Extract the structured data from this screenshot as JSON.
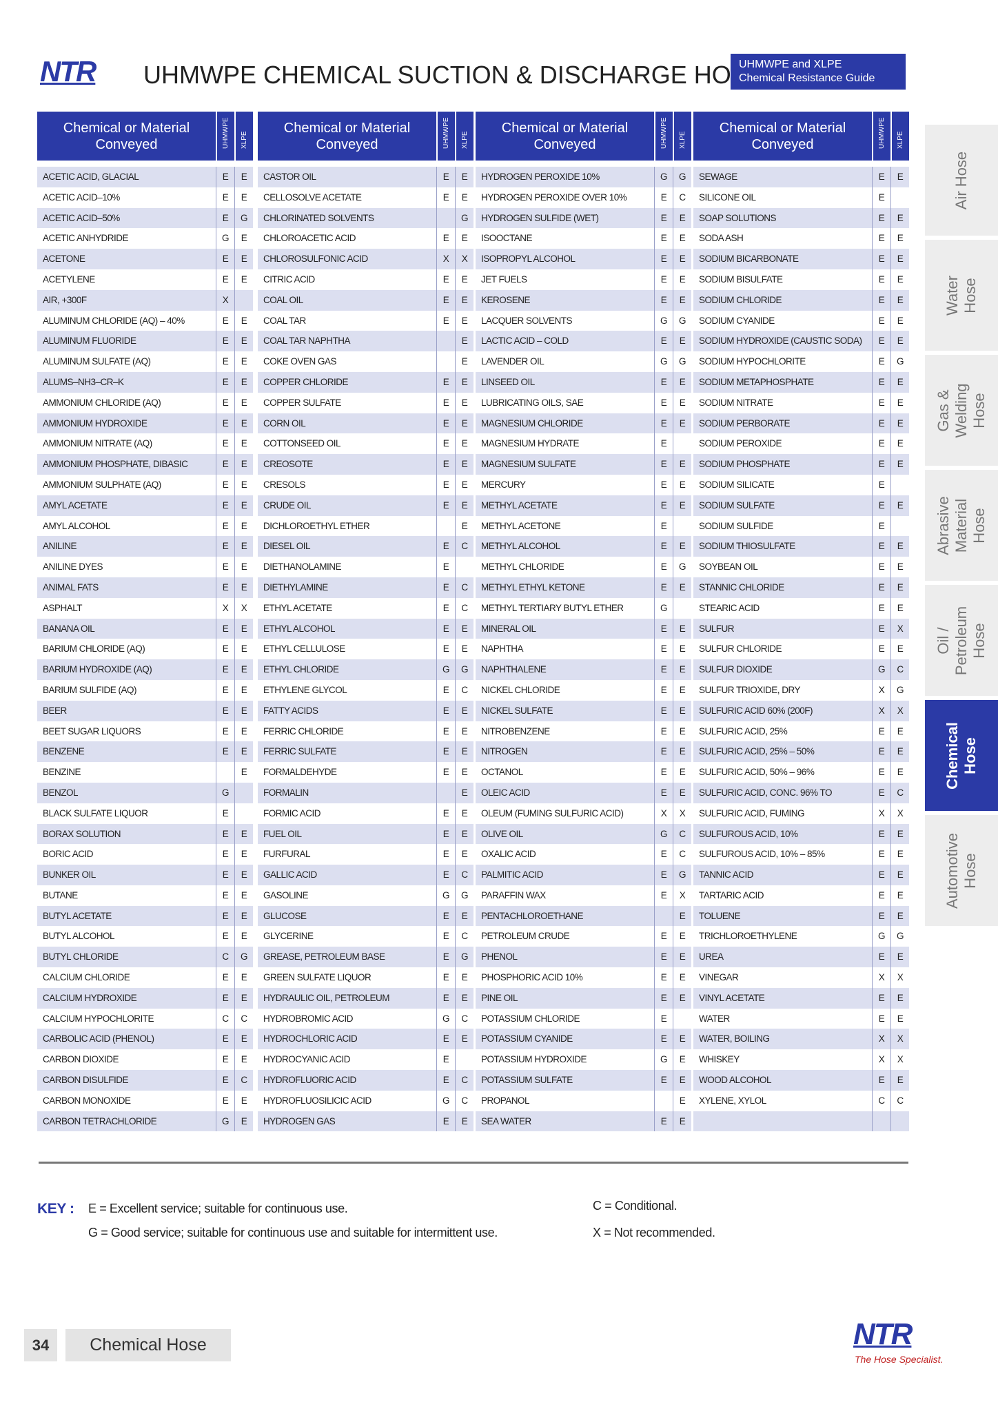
{
  "header": {
    "logo": "NTR",
    "title": "UHMWPE CHEMICAL SUCTION & DISCHARGE HOSE",
    "badge": [
      "UHMWPE and XLPE",
      "Chemical  Resistance Guide"
    ]
  },
  "tables": [
    {
      "headers": [
        "Chemical or Material Conveyed",
        "UHMWPE",
        "XLPE"
      ],
      "rows": [
        [
          "ACETIC ACID, GLACIAL",
          "E",
          "E"
        ],
        [
          "ACETIC ACID–10%",
          "E",
          "E"
        ],
        [
          "ACETIC ACID–50%",
          "E",
          "G"
        ],
        [
          "ACETIC ANHYDRIDE",
          "G",
          "E"
        ],
        [
          "ACETONE",
          "E",
          "E"
        ],
        [
          "ACETYLENE",
          "E",
          "E"
        ],
        [
          "AIR, +300F",
          "X",
          null
        ],
        [
          "ALUMINUM CHLORIDE (AQ) – 40%",
          "E",
          "E"
        ],
        [
          "ALUMINUM FLUORIDE",
          "E",
          "E"
        ],
        [
          "ALUMINUM SULFATE (AQ)",
          "E",
          "E"
        ],
        [
          "ALUMS–NH3–CR–K",
          "E",
          "E"
        ],
        [
          "AMMONIUM CHLORIDE (AQ)",
          "E",
          "E"
        ],
        [
          "AMMONIUM HYDROXIDE",
          "E",
          "E"
        ],
        [
          "AMMONIUM NITRATE (AQ)",
          "E",
          "E"
        ],
        [
          "AMMONIUM PHOSPHATE, DIBASIC",
          "E",
          "E"
        ],
        [
          "AMMONIUM SULPHATE (AQ)",
          "E",
          "E"
        ],
        [
          "AMYL ACETATE",
          "E",
          "E"
        ],
        [
          "AMYL ALCOHOL",
          "E",
          "E"
        ],
        [
          "ANILINE",
          "E",
          "E"
        ],
        [
          "ANILINE DYES",
          "E",
          "E"
        ],
        [
          "ANIMAL FATS",
          "E",
          "E"
        ],
        [
          "ASPHALT",
          "X",
          "X"
        ],
        [
          "BANANA OIL",
          "E",
          "E"
        ],
        [
          "BARIUM CHLORIDE (AQ)",
          "E",
          "E"
        ],
        [
          "BARIUM HYDROXIDE (AQ)",
          "E",
          "E"
        ],
        [
          "BARIUM SULFIDE (AQ)",
          "E",
          "E"
        ],
        [
          "BEER",
          "E",
          "E"
        ],
        [
          "BEET SUGAR LIQUORS",
          "E",
          "E"
        ],
        [
          "BENZENE",
          "E",
          "E"
        ],
        [
          "BENZINE",
          null,
          "E"
        ],
        [
          "BENZOL",
          "G",
          null
        ],
        [
          "BLACK SULFATE LIQUOR",
          "E",
          null
        ],
        [
          "BORAX SOLUTION",
          "E",
          "E"
        ],
        [
          "BORIC ACID",
          "E",
          "E"
        ],
        [
          "BUNKER OIL",
          "E",
          "E"
        ],
        [
          "BUTANE",
          "E",
          "E"
        ],
        [
          "BUTYL ACETATE",
          "E",
          "E"
        ],
        [
          "BUTYL ALCOHOL",
          "E",
          "E"
        ],
        [
          "BUTYL CHLORIDE",
          "C",
          "G"
        ],
        [
          "CALCIUM CHLORIDE",
          "E",
          "E"
        ],
        [
          "CALCIUM HYDROXIDE",
          "E",
          "E"
        ],
        [
          "CALCIUM HYPOCHLORITE",
          "C",
          "C"
        ],
        [
          "CARBOLIC ACID (PHENOL)",
          "E",
          "E"
        ],
        [
          "CARBON DIOXIDE",
          "E",
          "E"
        ],
        [
          "CARBON DISULFIDE",
          "E",
          "C"
        ],
        [
          "CARBON MONOXIDE",
          "E",
          "E"
        ],
        [
          "CARBON TETRACHLORIDE",
          "G",
          "E"
        ]
      ]
    },
    {
      "headers": [
        "Chemical or Material Conveyed",
        "UHMWPE",
        "XLPE"
      ],
      "rows": [
        [
          "CASTOR OIL",
          "E",
          "E"
        ],
        [
          "CELLOSOLVE ACETATE",
          "E",
          "E"
        ],
        [
          "CHLORINATED SOLVENTS",
          null,
          "G"
        ],
        [
          "CHLOROACETIC ACID",
          "E",
          "E"
        ],
        [
          "CHLOROSULFONIC ACID",
          "X",
          "X"
        ],
        [
          "CITRIC ACID",
          "E",
          "E"
        ],
        [
          "COAL OIL",
          "E",
          "E"
        ],
        [
          "COAL TAR",
          "E",
          "E"
        ],
        [
          "COAL TAR NAPHTHA",
          null,
          "E"
        ],
        [
          "COKE OVEN GAS",
          null,
          "E"
        ],
        [
          "COPPER CHLORIDE",
          "E",
          "E"
        ],
        [
          "COPPER SULFATE",
          "E",
          "E"
        ],
        [
          "CORN OIL",
          "E",
          "E"
        ],
        [
          "COTTONSEED OIL",
          "E",
          "E"
        ],
        [
          "CREOSOTE",
          "E",
          "E"
        ],
        [
          "CRESOLS",
          "E",
          "E"
        ],
        [
          "CRUDE OIL",
          "E",
          "E"
        ],
        [
          "DICHLOROETHYL ETHER",
          null,
          "E"
        ],
        [
          "DIESEL OIL",
          "E",
          "C"
        ],
        [
          "DIETHANOLAMINE",
          "E",
          null
        ],
        [
          "DIETHYLAMINE",
          "E",
          "C"
        ],
        [
          "ETHYL ACETATE",
          "E",
          "C"
        ],
        [
          "ETHYL ALCOHOL",
          "E",
          "E"
        ],
        [
          "ETHYL CELLULOSE",
          "E",
          "E"
        ],
        [
          "ETHYL CHLORIDE",
          "G",
          "G"
        ],
        [
          "ETHYLENE GLYCOL",
          "E",
          "C"
        ],
        [
          "FATTY ACIDS",
          "E",
          "E"
        ],
        [
          "FERRIC CHLORIDE",
          "E",
          "E"
        ],
        [
          "FERRIC SULFATE",
          "E",
          "E"
        ],
        [
          "FORMALDEHYDE",
          "E",
          "E"
        ],
        [
          "FORMALIN",
          null,
          "E"
        ],
        [
          "FORMIC ACID",
          "E",
          "E"
        ],
        [
          "FUEL OIL",
          "E",
          "E"
        ],
        [
          "FURFURAL",
          "E",
          "E"
        ],
        [
          "GALLIC ACID",
          "E",
          "C"
        ],
        [
          "GASOLINE",
          "G",
          "G"
        ],
        [
          "GLUCOSE",
          "E",
          "E"
        ],
        [
          "GLYCERINE",
          "E",
          "C"
        ],
        [
          "GREASE, PETROLEUM BASE",
          "E",
          "G"
        ],
        [
          "GREEN SULFATE LIQUOR",
          "E",
          "E"
        ],
        [
          "HYDRAULIC OIL, PETROLEUM",
          "E",
          "E"
        ],
        [
          "HYDROBROMIC ACID",
          "G",
          "C"
        ],
        [
          "HYDROCHLORIC ACID",
          "E",
          "E"
        ],
        [
          "HYDROCYANIC ACID",
          "E",
          null
        ],
        [
          "HYDROFLUORIC ACID",
          "E",
          "C"
        ],
        [
          "HYDROFLUOSILICIC ACID",
          "G",
          "C"
        ],
        [
          "HYDROGEN GAS",
          "E",
          "E"
        ]
      ]
    },
    {
      "headers": [
        "Chemical or Material Conveyed",
        "UHMWPE",
        "XLPE"
      ],
      "rows": [
        [
          "HYDROGEN PEROXIDE 10%",
          "G",
          "G"
        ],
        [
          "HYDROGEN PEROXIDE OVER 10%",
          "E",
          "C"
        ],
        [
          "HYDROGEN SULFIDE (WET)",
          "E",
          "E"
        ],
        [
          "ISOOCTANE",
          "E",
          "E"
        ],
        [
          "ISOPROPYL ALCOHOL",
          "E",
          "E"
        ],
        [
          "JET FUELS",
          "E",
          "E"
        ],
        [
          "KEROSENE",
          "E",
          "E"
        ],
        [
          "LACQUER SOLVENTS",
          "G",
          "G"
        ],
        [
          "LACTIC ACID – COLD",
          "E",
          "E"
        ],
        [
          "LAVENDER OIL",
          "G",
          "G"
        ],
        [
          "LINSEED OIL",
          "E",
          "E"
        ],
        [
          "LUBRICATING OILS, SAE",
          "E",
          "E"
        ],
        [
          "MAGNESIUM CHLORIDE",
          "E",
          "E"
        ],
        [
          "MAGNESIUM HYDRATE",
          "E",
          null
        ],
        [
          "MAGNESIUM SULFATE",
          "E",
          "E"
        ],
        [
          "MERCURY",
          "E",
          "E"
        ],
        [
          "METHYL ACETATE",
          "E",
          "E"
        ],
        [
          "METHYL ACETONE",
          "E",
          null
        ],
        [
          "METHYL ALCOHOL",
          "E",
          "E"
        ],
        [
          "METHYL CHLORIDE",
          "E",
          "G"
        ],
        [
          "METHYL ETHYL KETONE",
          "E",
          "E"
        ],
        [
          "METHYL TERTIARY BUTYL ETHER",
          "G",
          null
        ],
        [
          "MINERAL OIL",
          "E",
          "E"
        ],
        [
          "NAPHTHA",
          "E",
          "E"
        ],
        [
          "NAPHTHALENE",
          "E",
          "E"
        ],
        [
          "NICKEL CHLORIDE",
          "E",
          "E"
        ],
        [
          "NICKEL SULFATE",
          "E",
          "E"
        ],
        [
          "NITROBENZENE",
          "E",
          "E"
        ],
        [
          "NITROGEN",
          "E",
          "E"
        ],
        [
          "OCTANOL",
          "E",
          "E"
        ],
        [
          "OLEIC ACID",
          "E",
          "E"
        ],
        [
          "OLEUM (FUMING SULFURIC ACID)",
          "X",
          "X"
        ],
        [
          "OLIVE OIL",
          "G",
          "C"
        ],
        [
          "OXALIC ACID",
          "E",
          "C"
        ],
        [
          "PALMITIC ACID",
          "E",
          "G"
        ],
        [
          "PARAFFIN WAX",
          "E",
          "X"
        ],
        [
          "PENTACHLOROETHANE",
          null,
          "E"
        ],
        [
          "PETROLEUM CRUDE",
          "E",
          "E"
        ],
        [
          "PHENOL",
          "E",
          "E"
        ],
        [
          "PHOSPHORIC ACID 10%",
          "E",
          "E"
        ],
        [
          "PINE OIL",
          "E",
          "E"
        ],
        [
          "POTASSIUM CHLORIDE",
          "E",
          null
        ],
        [
          "POTASSIUM CYANIDE",
          "E",
          "E"
        ],
        [
          "POTASSIUM HYDROXIDE",
          "G",
          "E"
        ],
        [
          "POTASSIUM SULFATE",
          "E",
          "E"
        ],
        [
          "PROPANOL",
          null,
          "E"
        ],
        [
          "SEA WATER",
          "E",
          "E"
        ]
      ]
    },
    {
      "headers": [
        "Chemical or Material Conveyed",
        "UHMWPE",
        "XLPE"
      ],
      "rows": [
        [
          "SEWAGE",
          "E",
          "E"
        ],
        [
          "SILICONE OIL",
          "E",
          null
        ],
        [
          "SOAP SOLUTIONS",
          "E",
          "E"
        ],
        [
          "SODA ASH",
          "E",
          "E"
        ],
        [
          "SODIUM BICARBONATE",
          "E",
          "E"
        ],
        [
          "SODIUM BISULFATE",
          "E",
          "E"
        ],
        [
          "SODIUM CHLORIDE",
          "E",
          "E"
        ],
        [
          "SODIUM CYANIDE",
          "E",
          "E"
        ],
        [
          "SODIUM HYDROXIDE (CAUSTIC SODA)",
          "E",
          "E"
        ],
        [
          "SODIUM HYPOCHLORITE",
          "E",
          "G"
        ],
        [
          "SODIUM METAPHOSPHATE",
          "E",
          "E"
        ],
        [
          "SODIUM NITRATE",
          "E",
          "E"
        ],
        [
          "SODIUM PERBORATE",
          "E",
          "E"
        ],
        [
          "SODIUM PEROXIDE",
          "E",
          "E"
        ],
        [
          "SODIUM PHOSPHATE",
          "E",
          "E"
        ],
        [
          "SODIUM SILICATE",
          "E",
          null
        ],
        [
          "SODIUM SULFATE",
          "E",
          "E"
        ],
        [
          "SODIUM SULFIDE",
          "E",
          null
        ],
        [
          "SODIUM THIOSULFATE",
          "E",
          "E"
        ],
        [
          "SOYBEAN OIL",
          "E",
          "E"
        ],
        [
          "STANNIC CHLORIDE",
          "E",
          "E"
        ],
        [
          "STEARIC ACID",
          "E",
          "E"
        ],
        [
          "SULFUR",
          "E",
          "X"
        ],
        [
          "SULFUR CHLORIDE",
          "E",
          "E"
        ],
        [
          "SULFUR DIOXIDE",
          "G",
          "C"
        ],
        [
          "SULFUR TRIOXIDE, DRY",
          "X",
          "G"
        ],
        [
          "SULFURIC ACID 60% (200F)",
          "X",
          "X"
        ],
        [
          "SULFURIC ACID, 25%",
          "E",
          "E"
        ],
        [
          "SULFURIC ACID, 25% – 50%",
          "E",
          "E"
        ],
        [
          "SULFURIC ACID, 50% – 96%",
          "E",
          "E"
        ],
        [
          "SULFURIC ACID, CONC. 96% TO",
          "E",
          "C"
        ],
        [
          "SULFURIC ACID, FUMING",
          "X",
          "X"
        ],
        [
          "SULFUROUS ACID, 10%",
          "E",
          "E"
        ],
        [
          "SULFUROUS ACID, 10% – 85%",
          "E",
          "E"
        ],
        [
          "TANNIC ACID",
          "E",
          "E"
        ],
        [
          "TARTARIC ACID",
          "E",
          "E"
        ],
        [
          "TOLUENE",
          "E",
          "E"
        ],
        [
          "TRICHLOROETHYLENE",
          "G",
          "G"
        ],
        [
          "UREA",
          "E",
          "E"
        ],
        [
          "VINEGAR",
          "X",
          "X"
        ],
        [
          "VINYL ACETATE",
          "E",
          "E"
        ],
        [
          "WATER",
          "E",
          "E"
        ],
        [
          "WATER, BOILING",
          "X",
          "X"
        ],
        [
          "WHISKEY",
          "X",
          "X"
        ],
        [
          "WOOD ALCOHOL",
          "E",
          "E"
        ],
        [
          "XYLENE, XYLOL",
          "C",
          "C"
        ]
      ]
    }
  ],
  "key": {
    "label": "KEY :",
    "items": [
      "E = Excellent service; suitable for continuous use.",
      "G = Good service; suitable for continuous use and suitable for intermittent use.",
      "C = Conditional.",
      "X = Not recommended."
    ]
  },
  "side_tabs": {
    "items": [
      "Air Hose",
      "Water Hose",
      "Gas & Welding Hose",
      "Abrasive Material Hose",
      "Oil / Petroleum Hose",
      "Chemical Hose",
      "Automotive Hose"
    ],
    "active": 5
  },
  "footer": {
    "page": "34",
    "section": "Chemical Hose",
    "logo": "NTR",
    "tagline": "The Hose Specialist."
  }
}
